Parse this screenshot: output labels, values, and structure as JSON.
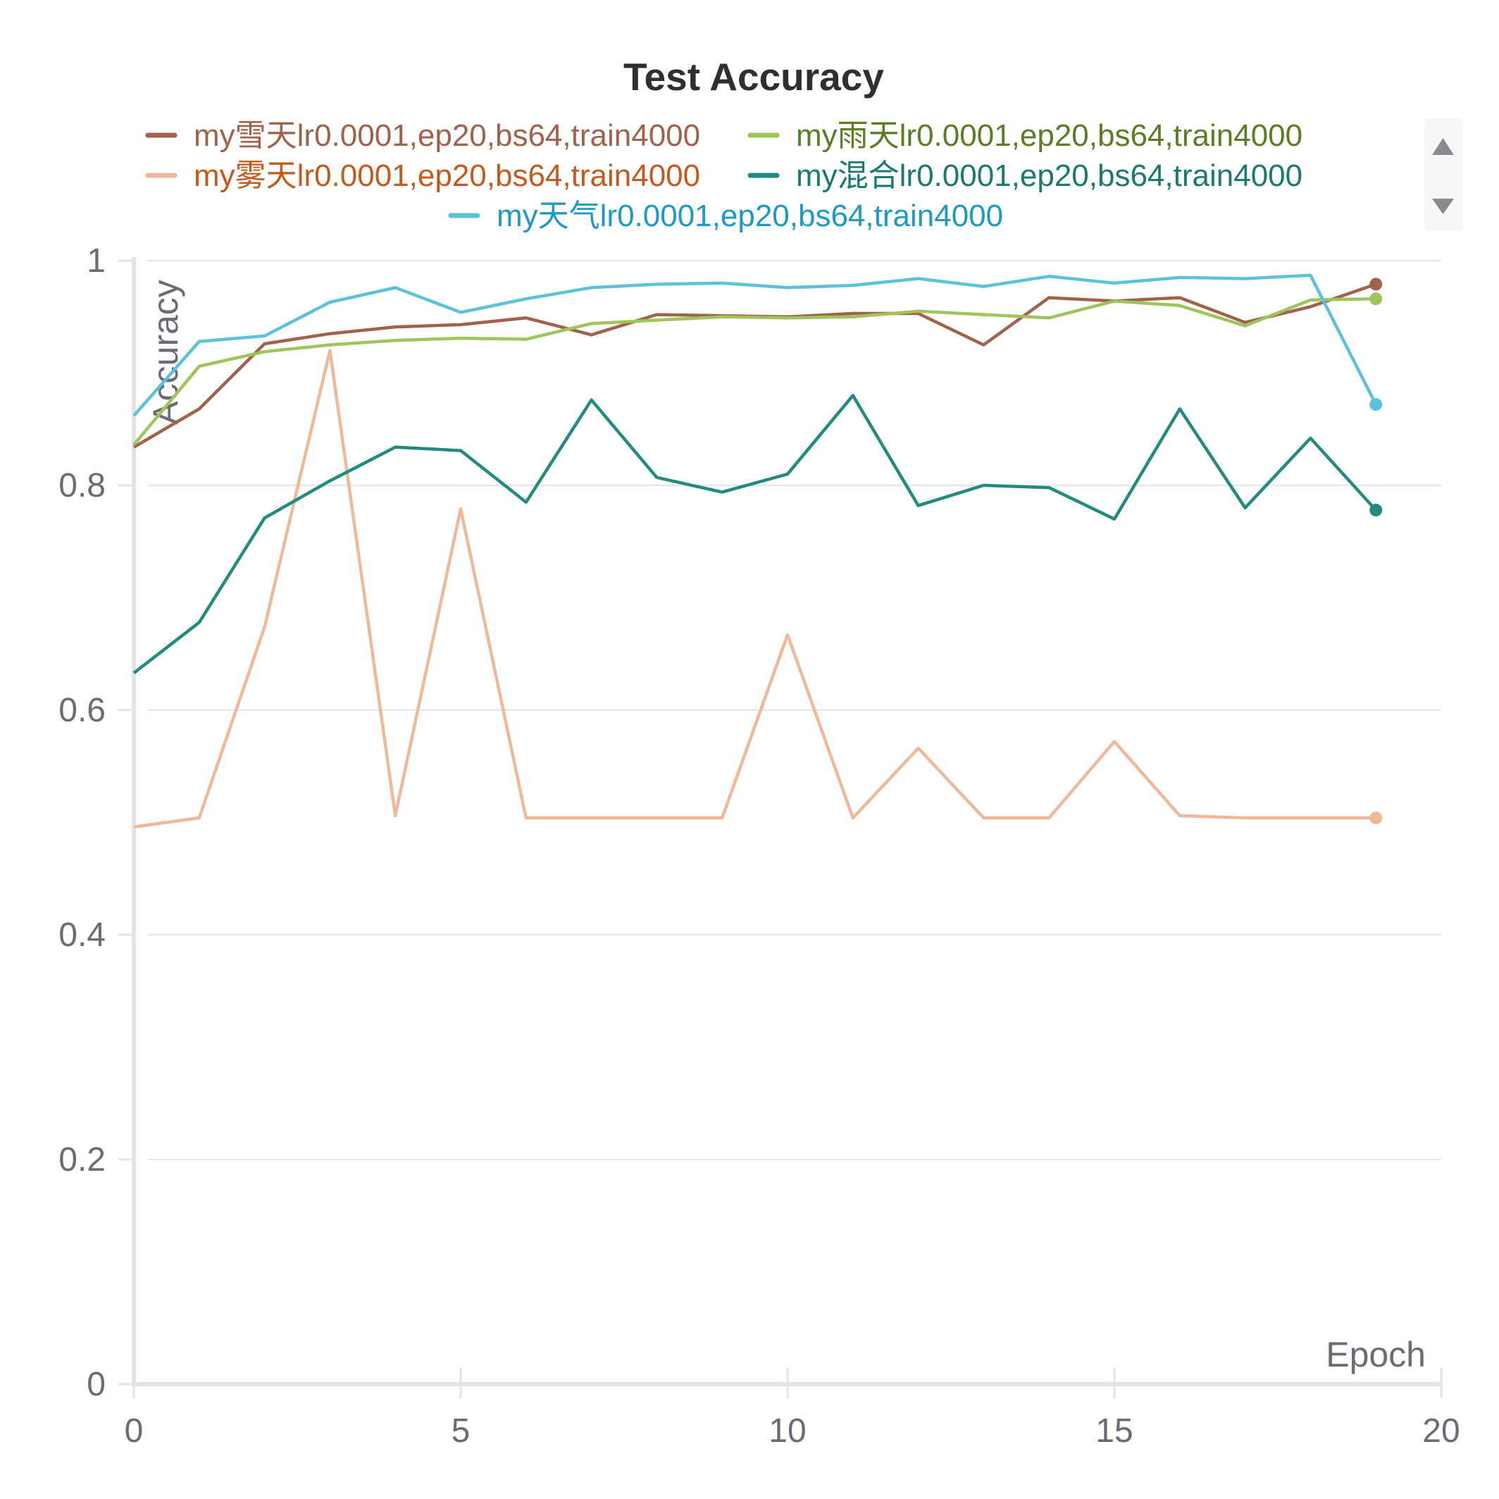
{
  "chart_data": {
    "type": "line",
    "title": "Test Accuracy",
    "xlabel": "Epoch",
    "ylabel": "Accuracy",
    "xlim": [
      0,
      20
    ],
    "ylim": [
      0,
      1
    ],
    "x_ticks": [
      "0",
      "5",
      "10",
      "15",
      "20"
    ],
    "y_ticks": [
      "0",
      "0.2",
      "0.4",
      "0.6",
      "0.8",
      "1"
    ],
    "grid": true,
    "legend_position": "top",
    "x": [
      0,
      1,
      2,
      3,
      4,
      5,
      6,
      7,
      8,
      9,
      10,
      11,
      12,
      13,
      14,
      15,
      16,
      17,
      18,
      19
    ],
    "series": [
      {
        "name": "my雪天lr0.0001,ep20,bs64,train4000",
        "color": "#a0624a",
        "text_color": "#a0624a",
        "values": [
          0.834,
          0.868,
          0.926,
          0.935,
          0.941,
          0.943,
          0.949,
          0.934,
          0.952,
          0.951,
          0.95,
          0.953,
          0.953,
          0.925,
          0.967,
          0.964,
          0.967,
          0.945,
          0.959,
          0.979
        ]
      },
      {
        "name": "my雨天lr0.0001,ep20,bs64,train4000",
        "color": "#9fc55a",
        "text_color": "#5b7d23",
        "values": [
          0.836,
          0.906,
          0.919,
          0.925,
          0.929,
          0.931,
          0.93,
          0.944,
          0.947,
          0.95,
          0.949,
          0.95,
          0.955,
          0.952,
          0.949,
          0.964,
          0.96,
          0.942,
          0.965,
          0.966
        ]
      },
      {
        "name": "my雾天lr0.0001,ep20,bs64,train4000",
        "color": "#f0b89a",
        "text_color": "#c45a1e",
        "values": [
          0.496,
          0.504,
          0.674,
          0.92,
          0.506,
          0.779,
          0.504,
          0.504,
          0.504,
          0.504,
          0.667,
          0.504,
          0.566,
          0.504,
          0.504,
          0.572,
          0.506,
          0.504,
          0.504,
          0.504
        ]
      },
      {
        "name": "my混合lr0.0001,ep20,bs64,train4000",
        "color": "#218b7d",
        "text_color": "#1b7a6f",
        "values": [
          0.633,
          0.678,
          0.771,
          0.804,
          0.834,
          0.831,
          0.785,
          0.876,
          0.807,
          0.794,
          0.81,
          0.88,
          0.782,
          0.8,
          0.798,
          0.77,
          0.868,
          0.78,
          0.842,
          0.778
        ]
      },
      {
        "name": "my天气lr0.0001,ep20,bs64,train4000",
        "color": "#5bc2d9",
        "text_color": "#1c9ac2",
        "values": [
          0.862,
          0.928,
          0.933,
          0.963,
          0.976,
          0.954,
          0.966,
          0.976,
          0.979,
          0.98,
          0.976,
          0.978,
          0.984,
          0.977,
          0.986,
          0.98,
          0.985,
          0.984,
          0.987,
          0.872
        ]
      }
    ]
  },
  "legend_scroll": {
    "up_icon": "triangle-up-icon",
    "down_icon": "triangle-down-icon"
  }
}
